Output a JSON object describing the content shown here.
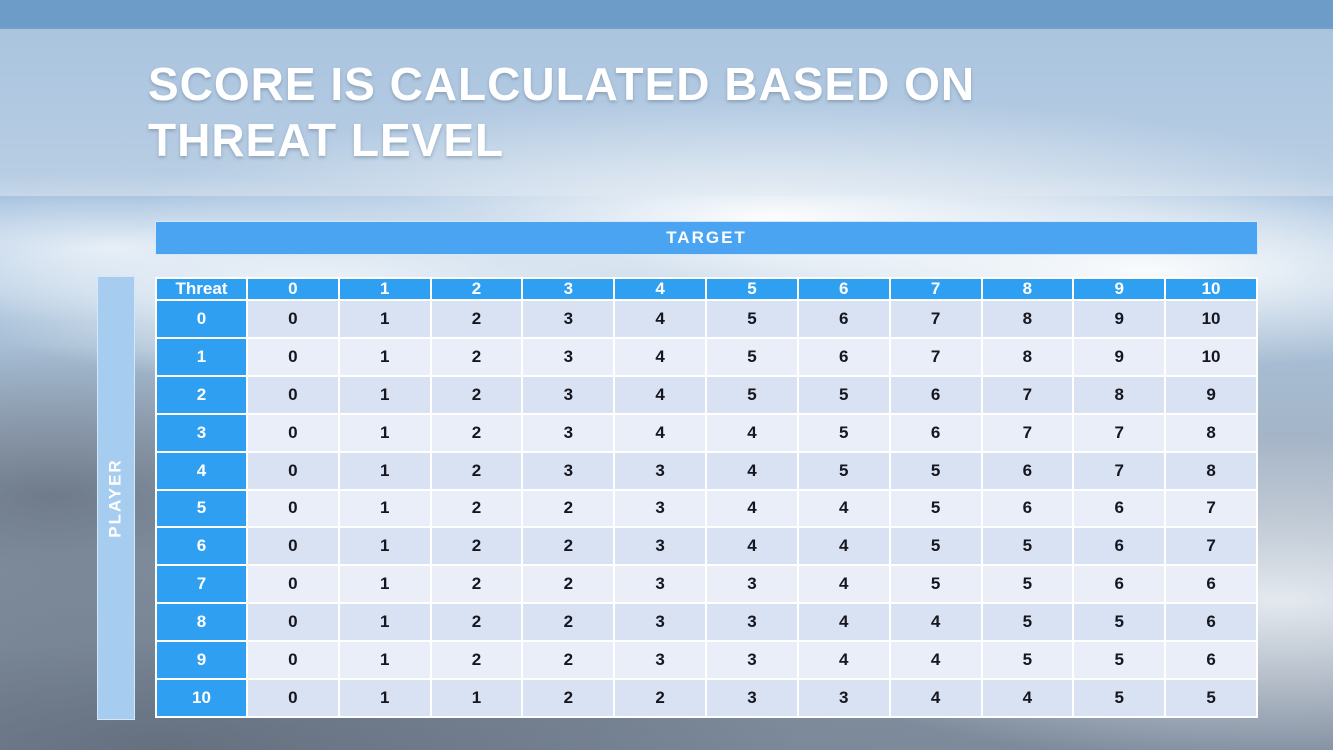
{
  "slide": {
    "title_line1": "SCORE IS CALCULATED BASED ON",
    "title_line2": "THREAT LEVEL"
  },
  "matrix": {
    "target_label": "TARGET",
    "player_label": "PLAYER",
    "corner_label": "Threat",
    "column_headers": [
      "0",
      "1",
      "2",
      "3",
      "4",
      "5",
      "6",
      "7",
      "8",
      "9",
      "10"
    ],
    "rows": [
      {
        "label": "0",
        "values": [
          "0",
          "1",
          "2",
          "3",
          "4",
          "5",
          "6",
          "7",
          "8",
          "9",
          "10"
        ]
      },
      {
        "label": "1",
        "values": [
          "0",
          "1",
          "2",
          "3",
          "4",
          "5",
          "6",
          "7",
          "8",
          "9",
          "10"
        ]
      },
      {
        "label": "2",
        "values": [
          "0",
          "1",
          "2",
          "3",
          "4",
          "5",
          "5",
          "6",
          "7",
          "8",
          "9"
        ]
      },
      {
        "label": "3",
        "values": [
          "0",
          "1",
          "2",
          "3",
          "4",
          "4",
          "5",
          "6",
          "7",
          "7",
          "8"
        ]
      },
      {
        "label": "4",
        "values": [
          "0",
          "1",
          "2",
          "3",
          "3",
          "4",
          "5",
          "5",
          "6",
          "7",
          "8"
        ]
      },
      {
        "label": "5",
        "values": [
          "0",
          "1",
          "2",
          "2",
          "3",
          "4",
          "4",
          "5",
          "6",
          "6",
          "7"
        ]
      },
      {
        "label": "6",
        "values": [
          "0",
          "1",
          "2",
          "2",
          "3",
          "4",
          "4",
          "5",
          "5",
          "6",
          "7"
        ]
      },
      {
        "label": "7",
        "values": [
          "0",
          "1",
          "2",
          "2",
          "3",
          "3",
          "4",
          "5",
          "5",
          "6",
          "6"
        ]
      },
      {
        "label": "8",
        "values": [
          "0",
          "1",
          "2",
          "2",
          "3",
          "3",
          "4",
          "4",
          "5",
          "5",
          "6"
        ]
      },
      {
        "label": "9",
        "values": [
          "0",
          "1",
          "2",
          "2",
          "3",
          "3",
          "4",
          "4",
          "5",
          "5",
          "6"
        ]
      },
      {
        "label": "10",
        "values": [
          "0",
          "1",
          "1",
          "2",
          "2",
          "3",
          "3",
          "4",
          "4",
          "5",
          "5"
        ]
      }
    ]
  },
  "colors": {
    "top_bar": "#6d9cc9",
    "header_blue": "#2f9ff2",
    "target_bar_blue": "#4aa4f2",
    "player_bar_blue": "#a6ccf0",
    "row_band_dark": "#d9e2f3",
    "row_band_light": "#eaeef9",
    "cell_text": "#16161f",
    "grid_white": "#ffffff"
  }
}
